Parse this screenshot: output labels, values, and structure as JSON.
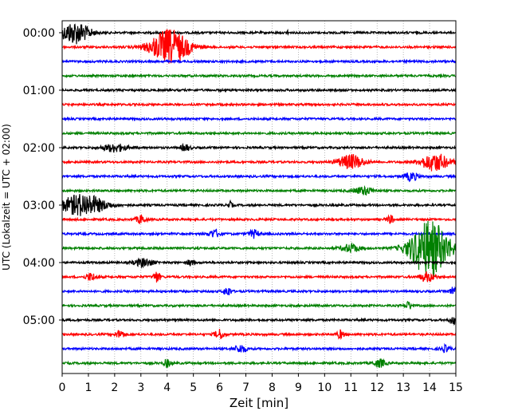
{
  "chart_data": {
    "type": "line",
    "title": "",
    "xlabel": "Zeit  [min]",
    "ylabel": "UTC (Lokalzeit = UTC + 02:00)",
    "xlim": [
      0,
      15
    ],
    "x_ticks": [
      0,
      1,
      2,
      3,
      4,
      5,
      6,
      7,
      8,
      9,
      10,
      11,
      12,
      13,
      14,
      15
    ],
    "y_tick_labels": [
      "00:00",
      "01:00",
      "02:00",
      "03:00",
      "04:00",
      "05:00"
    ],
    "trace_interval_minutes": 15,
    "trace_count": 24,
    "grid": "vertical dotted at each minute",
    "trace_colors": [
      "#000000",
      "#ff0000",
      "#0000ff",
      "#008000"
    ],
    "events": [
      {
        "trace": 0,
        "minute": 0.5,
        "amplitude": 14,
        "duration": 1.2
      },
      {
        "trace": 0,
        "minute": 8.6,
        "amplitude": 6,
        "duration": 0.05
      },
      {
        "trace": 1,
        "minute": 4.1,
        "amplitude": 22,
        "duration": 1.6
      },
      {
        "trace": 4,
        "minute": 8.6,
        "amplitude": 1,
        "duration": 0.1
      },
      {
        "trace": 8,
        "minute": 2.0,
        "amplitude": 5,
        "duration": 1.0
      },
      {
        "trace": 8,
        "minute": 4.7,
        "amplitude": 4,
        "duration": 0.4
      },
      {
        "trace": 9,
        "minute": 11.0,
        "amplitude": 9,
        "duration": 1.1
      },
      {
        "trace": 9,
        "minute": 14.2,
        "amplitude": 11,
        "duration": 1.2
      },
      {
        "trace": 10,
        "minute": 13.3,
        "amplitude": 5,
        "duration": 0.6
      },
      {
        "trace": 11,
        "minute": 11.5,
        "amplitude": 5,
        "duration": 0.8
      },
      {
        "trace": 12,
        "minute": 0.8,
        "amplitude": 14,
        "duration": 1.8
      },
      {
        "trace": 12,
        "minute": 6.4,
        "amplitude": 4,
        "duration": 0.2
      },
      {
        "trace": 13,
        "minute": 3.0,
        "amplitude": 5,
        "duration": 0.4
      },
      {
        "trace": 13,
        "minute": 12.5,
        "amplitude": 5,
        "duration": 0.3
      },
      {
        "trace": 14,
        "minute": 5.8,
        "amplitude": 5,
        "duration": 0.5
      },
      {
        "trace": 14,
        "minute": 7.3,
        "amplitude": 5,
        "duration": 0.4
      },
      {
        "trace": 15,
        "minute": 11.0,
        "amplitude": 5,
        "duration": 0.8
      },
      {
        "trace": 15,
        "minute": 14.0,
        "amplitude": 36,
        "duration": 1.6
      },
      {
        "trace": 16,
        "minute": 3.1,
        "amplitude": 5,
        "duration": 0.8
      },
      {
        "trace": 16,
        "minute": 4.9,
        "amplitude": 4,
        "duration": 0.3
      },
      {
        "trace": 17,
        "minute": 1.1,
        "amplitude": 5,
        "duration": 0.4
      },
      {
        "trace": 17,
        "minute": 3.6,
        "amplitude": 7,
        "duration": 0.3
      },
      {
        "trace": 17,
        "minute": 13.9,
        "amplitude": 6,
        "duration": 0.6
      },
      {
        "trace": 18,
        "minute": 6.3,
        "amplitude": 6,
        "duration": 0.3
      },
      {
        "trace": 18,
        "minute": 14.9,
        "amplitude": 5,
        "duration": 0.3
      },
      {
        "trace": 19,
        "minute": 13.2,
        "amplitude": 5,
        "duration": 0.3
      },
      {
        "trace": 20,
        "minute": 14.9,
        "amplitude": 5,
        "duration": 0.3
      },
      {
        "trace": 21,
        "minute": 6.0,
        "amplitude": 6,
        "duration": 0.4
      },
      {
        "trace": 21,
        "minute": 10.6,
        "amplitude": 5,
        "duration": 0.3
      },
      {
        "trace": 21,
        "minute": 2.2,
        "amplitude": 5,
        "duration": 0.4
      },
      {
        "trace": 22,
        "minute": 6.8,
        "amplitude": 5,
        "duration": 0.5
      },
      {
        "trace": 22,
        "minute": 14.6,
        "amplitude": 4,
        "duration": 0.4
      },
      {
        "trace": 23,
        "minute": 4.0,
        "amplitude": 5,
        "duration": 0.3
      },
      {
        "trace": 23,
        "minute": 12.1,
        "amplitude": 5,
        "duration": 0.5
      }
    ]
  }
}
